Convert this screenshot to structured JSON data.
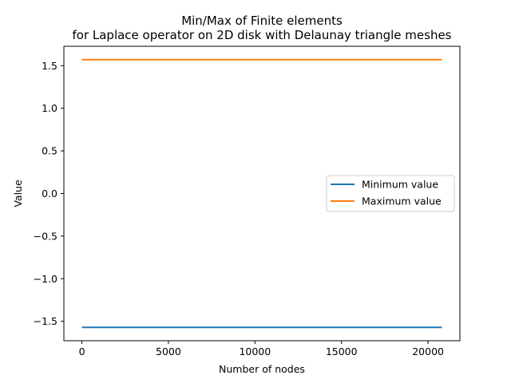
{
  "chart_data": {
    "type": "line",
    "title": "Min/Max of Finite elements",
    "subtitle": "for Laplace operator on 2D disk with Delaunay triangle meshes",
    "xlabel": "Number of nodes",
    "ylabel": "Value",
    "xlim": [
      -1040,
      21840
    ],
    "ylim": [
      -1.7279,
      1.7279
    ],
    "xticks": [
      {
        "value": 0,
        "label": "0"
      },
      {
        "value": 5000,
        "label": "5000"
      },
      {
        "value": 10000,
        "label": "10000"
      },
      {
        "value": 15000,
        "label": "15000"
      },
      {
        "value": 20000,
        "label": "20000"
      }
    ],
    "yticks": [
      {
        "value": 1.5,
        "label": "1.5"
      },
      {
        "value": 1.0,
        "label": "1.0"
      },
      {
        "value": 0.5,
        "label": "0.5"
      },
      {
        "value": 0.0,
        "label": "0.0"
      },
      {
        "value": -0.5,
        "label": "−0.5"
      },
      {
        "value": -1.0,
        "label": "−1.0"
      },
      {
        "value": -1.5,
        "label": "−1.5"
      }
    ],
    "grid": false,
    "legend_position": "center-right",
    "series": [
      {
        "name": "Minimum value",
        "color": "#1f77b4",
        "x": [
          0,
          20800
        ],
        "y": [
          -1.5708,
          -1.5708
        ]
      },
      {
        "name": "Maximum value",
        "color": "#ff7f0e",
        "x": [
          0,
          20800
        ],
        "y": [
          1.5708,
          1.5708
        ]
      }
    ]
  }
}
